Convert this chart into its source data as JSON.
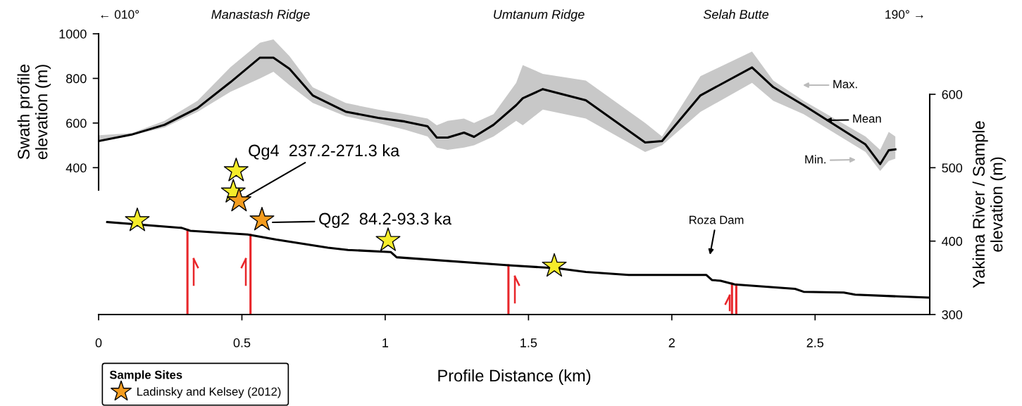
{
  "chart_data": [
    {
      "type": "line",
      "ylabel": "Swath profile\nelevation (m)",
      "xlim": [
        0,
        2.9
      ],
      "ylim": [
        300,
        1000
      ],
      "yticks": [
        400,
        600,
        800,
        1000
      ],
      "tick_labels": "y",
      "grid": false,
      "series": [
        {
          "color": "#000000",
          "x": [
            0,
            0.115,
            0.23,
            0.345,
            0.46,
            0.563,
            0.61,
            0.666,
            0.747,
            0.862,
            0.975,
            1.068,
            1.148,
            1.18,
            1.218,
            1.275,
            1.31,
            1.378,
            1.457,
            1.48,
            1.55,
            1.7,
            1.907,
            1.966,
            2.1,
            2.28,
            2.354,
            2.46,
            2.676,
            2.727,
            2.757,
            2.78
          ],
          "values": [
            519,
            548,
            592,
            667,
            783,
            893,
            893,
            843,
            724,
            651,
            623,
            607,
            585,
            535,
            535,
            557,
            538,
            592,
            680,
            711,
            752,
            702,
            513,
            519,
            724,
            849,
            761,
            680,
            504,
            416,
            478,
            482
          ],
          "upper": [
            545,
            555,
            610,
            700,
            850,
            960,
            975,
            900,
            760,
            690,
            660,
            640,
            620,
            590,
            610,
            620,
            600,
            640,
            780,
            860,
            820,
            790,
            600,
            540,
            810,
            920,
            790,
            700,
            540,
            480,
            560,
            540
          ],
          "lower": [
            515,
            545,
            580,
            650,
            740,
            800,
            830,
            770,
            690,
            630,
            600,
            570,
            540,
            490,
            480,
            490,
            500,
            540,
            610,
            590,
            660,
            620,
            470,
            500,
            650,
            780,
            700,
            640,
            470,
            385,
            430,
            440
          ]
        }
      ],
      "annotations": [
        "← 010°",
        "Manastash Ridge",
        "Umtanum Ridge",
        "Selah Butte",
        "190° →",
        "Max.",
        "Mean",
        "Min."
      ]
    },
    {
      "type": "line",
      "xlabel": "Profile Distance (km)",
      "ylabel": "Yakima River / Sample\nelevation (m)",
      "xlim": [
        0,
        2.9
      ],
      "xticks": [
        0,
        0.5,
        1,
        1.5,
        2,
        2.5
      ],
      "ylim": [
        300,
        600
      ],
      "yticks": [
        300,
        400,
        500,
        600
      ],
      "grid": false,
      "legend": "bottom left",
      "legend_title": "Sample Sites",
      "series": [
        {
          "color": "#000000",
          "x": [
            0.03,
            0.29,
            0.32,
            0.52,
            0.62,
            0.8,
            0.87,
            1.02,
            1.04,
            1.43,
            1.6,
            1.7,
            1.85,
            2.12,
            2.14,
            2.17,
            2.22,
            2.43,
            2.46,
            2.6,
            2.64,
            2.9
          ],
          "values": [
            426,
            418,
            414,
            409,
            402,
            391,
            388,
            385,
            378,
            367,
            363,
            358,
            354,
            354,
            347,
            346,
            341,
            335,
            331,
            330,
            327,
            323
          ]
        },
        {
          "type": "scatter",
          "color": "#f5ec2a",
          "marker": "star",
          "x": [
            0.135,
            0.48,
            0.47,
            1.01,
            1.59
          ],
          "values": [
            428,
            496,
            467,
            401,
            366
          ]
        },
        {
          "type": "scatter",
          "color": "#f39c1f",
          "marker": "star",
          "name": "Ladinsky and Kelsey (2012)",
          "x": [
            0.49,
            0.57
          ],
          "values": [
            455,
            429
          ]
        }
      ],
      "ref_lines": [
        {
          "axis": "x",
          "value": 0.31,
          "color": "#e8262a"
        },
        {
          "axis": "x",
          "value": 0.53,
          "color": "#e8262a"
        },
        {
          "axis": "x",
          "value": 1.43,
          "color": "#e8262a"
        },
        {
          "axis": "x",
          "value": 2.21,
          "color": "#e8262a"
        },
        {
          "axis": "x",
          "value": 2.225,
          "color": "#e8262a"
        }
      ],
      "annotations": [
        {
          "text": "Qg4  237.2-271.3 ka",
          "x": 0.49,
          "y": 455
        },
        "Qg2  84.2-93.3 ka",
        "Roza Dam"
      ]
    }
  ]
}
